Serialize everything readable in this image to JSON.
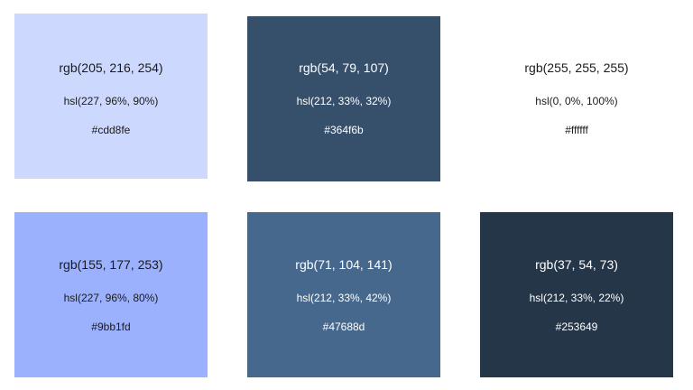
{
  "swatches": [
    {
      "rgb": "rgb(205, 216, 254)",
      "hsl": "hsl(227, 96%, 90%)",
      "hex": "#cdd8fe",
      "background": "#cdd8fe",
      "text_color": "#1b1b1b"
    },
    {
      "rgb": "rgb(54, 79, 107)",
      "hsl": "hsl(212, 33%, 32%)",
      "hex": "#364f6b",
      "background": "#364f6b",
      "text_color": "#ffffff"
    },
    {
      "rgb": "rgb(255, 255, 255)",
      "hsl": "hsl(0, 0%, 100%)",
      "hex": "#ffffff",
      "background": "#ffffff",
      "text_color": "#1b1b1b"
    },
    {
      "rgb": "rgb(155, 177, 253)",
      "hsl": "hsl(227, 96%, 80%)",
      "hex": "#9bb1fd",
      "background": "#9bb1fd",
      "text_color": "#1b1b1b"
    },
    {
      "rgb": "rgb(71, 104, 141)",
      "hsl": "hsl(212, 33%, 42%)",
      "hex": "#47688d",
      "background": "#47688d",
      "text_color": "#ffffff"
    },
    {
      "rgb": "rgb(37, 54, 73)",
      "hsl": "hsl(212, 33%, 22%)",
      "hex": "#253649",
      "background": "#253649",
      "text_color": "#ffffff"
    }
  ]
}
